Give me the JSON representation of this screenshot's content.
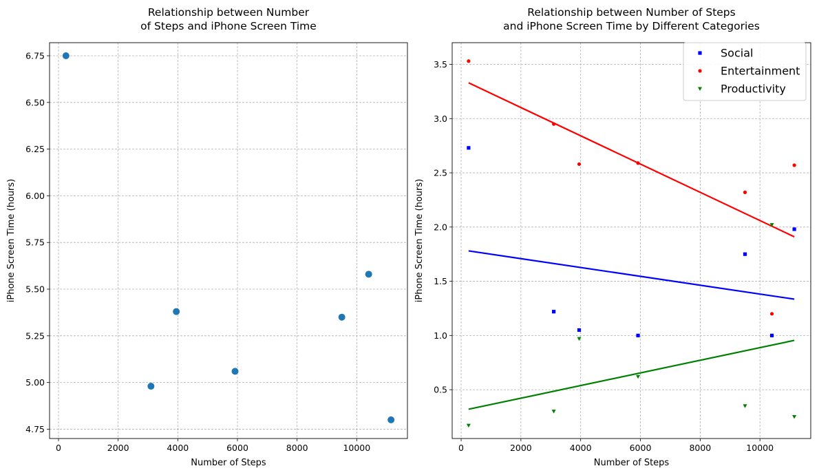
{
  "chart_data": [
    {
      "type": "scatter",
      "title": "Relationship between Number\nof Steps and iPhone Screen Time",
      "xlabel": "Number of Steps",
      "ylabel": "iPhone Screen Time (hours)",
      "xlim": [
        -300,
        11700
      ],
      "ylim": [
        4.7,
        6.82
      ],
      "xticks": [
        0,
        2000,
        4000,
        6000,
        8000,
        10000
      ],
      "xtick_labels": [
        "0",
        "2000",
        "4000",
        "6000",
        "8000",
        "10000"
      ],
      "yticks": [
        4.75,
        5.0,
        5.25,
        5.5,
        5.75,
        6.0,
        6.25,
        6.5,
        6.75
      ],
      "ytick_labels": [
        "4.75",
        "5.00",
        "5.25",
        "5.50",
        "5.75",
        "6.00",
        "6.25",
        "6.50",
        "6.75"
      ],
      "grid": true,
      "series": [
        {
          "color": "#1f77b4",
          "marker": "circle",
          "points": [
            {
              "x": 250,
              "y": 6.75
            },
            {
              "x": 3100,
              "y": 4.98
            },
            {
              "x": 3950,
              "y": 5.38
            },
            {
              "x": 5920,
              "y": 5.06
            },
            {
              "x": 9500,
              "y": 5.35
            },
            {
              "x": 10400,
              "y": 5.58
            },
            {
              "x": 11150,
              "y": 4.8
            }
          ]
        }
      ]
    },
    {
      "type": "scatter",
      "title": "Relationship between Number of Steps\nand iPhone Screen Time by Different Categories",
      "xlabel": "Number of Steps",
      "ylabel": "iPhone Screen Time (hours)",
      "xlim": [
        -300,
        11700
      ],
      "ylim": [
        0.05,
        3.7
      ],
      "xticks": [
        0,
        2000,
        4000,
        6000,
        8000,
        10000
      ],
      "xtick_labels": [
        "0",
        "2000",
        "4000",
        "6000",
        "8000",
        "10000"
      ],
      "yticks": [
        0.5,
        1.0,
        1.5,
        2.0,
        2.5,
        3.0,
        3.5
      ],
      "ytick_labels": [
        "0.5",
        "1.0",
        "1.5",
        "2.0",
        "2.5",
        "3.0",
        "3.5"
      ],
      "grid": true,
      "legend_position": "top-right",
      "series": [
        {
          "name": "Social",
          "color": "#0000ff",
          "marker": "square",
          "points": [
            {
              "x": 250,
              "y": 2.73
            },
            {
              "x": 3100,
              "y": 1.22
            },
            {
              "x": 3950,
              "y": 1.05
            },
            {
              "x": 5920,
              "y": 1.0
            },
            {
              "x": 9500,
              "y": 1.75
            },
            {
              "x": 10400,
              "y": 1.0
            },
            {
              "x": 11150,
              "y": 1.98
            }
          ],
          "trend": [
            {
              "x": 250,
              "y": 1.78
            },
            {
              "x": 11150,
              "y": 1.335
            }
          ]
        },
        {
          "name": "Entertainment",
          "color": "#ff0000",
          "marker": "circle",
          "points": [
            {
              "x": 250,
              "y": 3.53
            },
            {
              "x": 3100,
              "y": 2.95
            },
            {
              "x": 3950,
              "y": 2.58
            },
            {
              "x": 5920,
              "y": 2.59
            },
            {
              "x": 9500,
              "y": 2.32
            },
            {
              "x": 10400,
              "y": 1.2
            },
            {
              "x": 11150,
              "y": 2.57
            }
          ],
          "trend": [
            {
              "x": 250,
              "y": 3.33
            },
            {
              "x": 11150,
              "y": 1.91
            }
          ]
        },
        {
          "name": "Productivity",
          "color": "#008000",
          "marker": "triangle-down",
          "points": [
            {
              "x": 250,
              "y": 0.17
            },
            {
              "x": 3100,
              "y": 0.3
            },
            {
              "x": 3950,
              "y": 0.97
            },
            {
              "x": 5920,
              "y": 0.62
            },
            {
              "x": 9500,
              "y": 0.35
            },
            {
              "x": 10400,
              "y": 2.02
            },
            {
              "x": 11150,
              "y": 0.25
            }
          ],
          "trend": [
            {
              "x": 250,
              "y": 0.32
            },
            {
              "x": 11150,
              "y": 0.955
            }
          ]
        }
      ]
    }
  ]
}
